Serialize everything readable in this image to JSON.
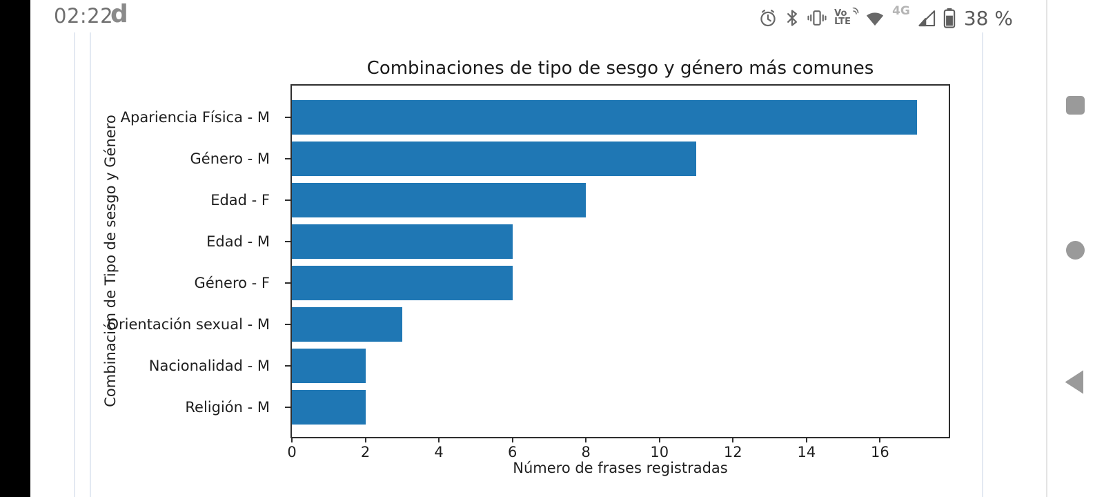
{
  "status_bar": {
    "time": "02:22",
    "carrier": "d",
    "volte_line1": "Vo",
    "volte_line2": "LTE",
    "network_badge": "4G",
    "battery_text": "38 %",
    "icon_color": "#686868",
    "dim_color": "#b5b5b5"
  },
  "navigation_bar": {
    "recents": "recents-square-button",
    "home": "home-circle-button",
    "back": "back-triangle-button",
    "button_color": "#9a9a9a"
  },
  "chart_data": {
    "type": "bar",
    "orientation": "horizontal",
    "title": "Combinaciones de tipo de sesgo y género más comunes",
    "xlabel": "Número de frases registradas",
    "ylabel": "Combinación de Tipo de sesgo y Género",
    "categories": [
      "Apariencia Física - M",
      "Género - M",
      "Edad - F",
      "Edad - M",
      "Género - F",
      "Orientación sexual - M",
      "Nacionalidad - M",
      "Religión - M"
    ],
    "values": [
      17,
      11,
      8,
      6,
      6,
      3,
      2,
      2
    ],
    "xticks": [
      0,
      2,
      4,
      6,
      8,
      10,
      12,
      14,
      16
    ],
    "xlim": [
      0,
      17.87
    ],
    "bar_color": "#1f77b4",
    "axis_color": "#2e2e2e",
    "grid": false,
    "legend": false
  }
}
